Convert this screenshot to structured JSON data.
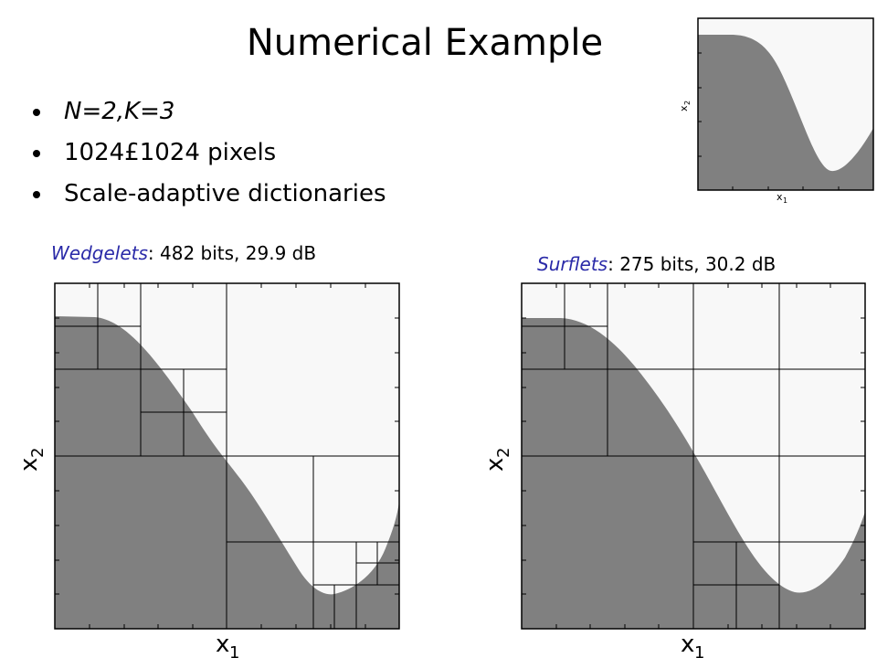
{
  "title": "Numerical Example",
  "bullets": [
    {
      "text": "N=2,K=3",
      "italic": true
    },
    {
      "text": "1024£1024 pixels",
      "italic": false
    },
    {
      "text": "Scale-adaptive dictionaries",
      "italic": false
    }
  ],
  "panels": {
    "inset": {
      "xlabel": "x",
      "xsub": "1",
      "ylabel": "x",
      "ysub": "2"
    },
    "wedgelets": {
      "name": "Wedgelets",
      "stats": ": 482 bits, 29.9 dB",
      "xlabel": "x",
      "xsub": "1",
      "ylabel": "x",
      "ysub": "2"
    },
    "surflets": {
      "name": "Surflets",
      "stats": ": 275 bits, 30.2 dB",
      "xlabel": "x",
      "xsub": "1",
      "ylabel": "x",
      "ysub": "2"
    }
  },
  "colors": {
    "fill": "#808080",
    "background": "#f8f8f8",
    "caption_name": "#2a2aa8"
  }
}
